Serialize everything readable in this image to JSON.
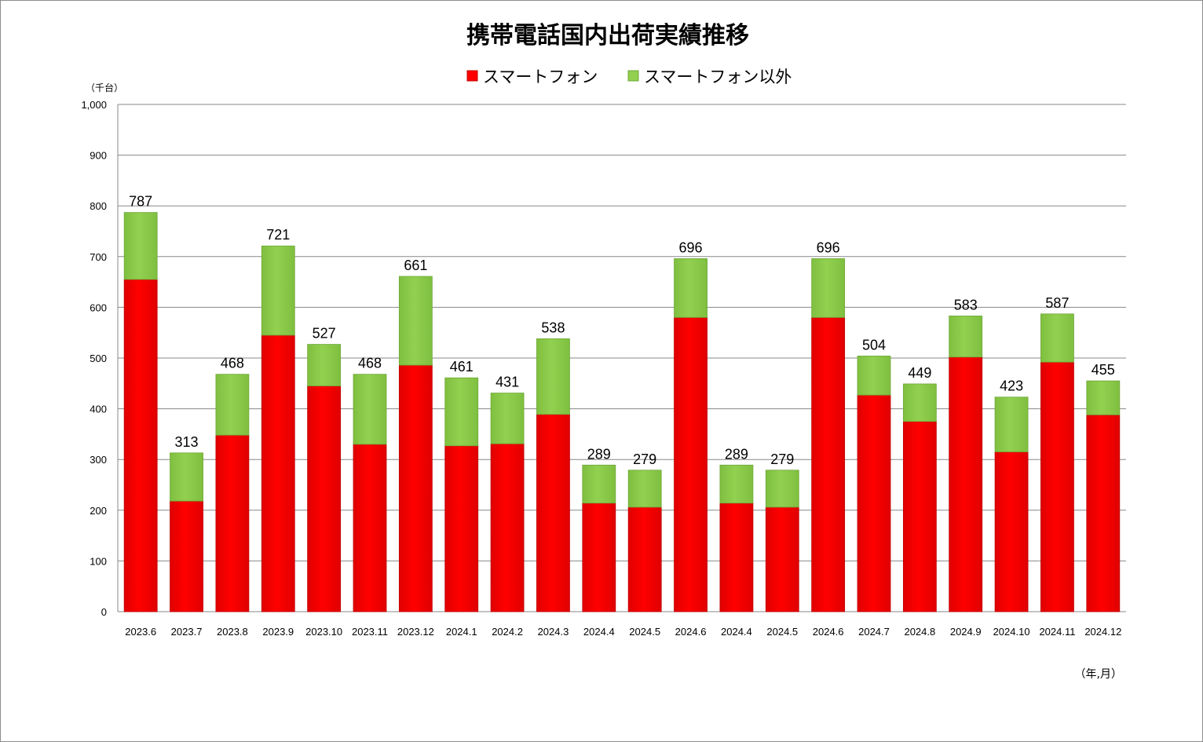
{
  "chart_data": {
    "type": "bar",
    "stacked": true,
    "title": "携帯電話国内出荷実績推移",
    "ylabel": "（千台）",
    "xlabel": "（年,月）",
    "ylim": [
      0,
      1000
    ],
    "yticks": [
      "0",
      "100",
      "200",
      "300",
      "400",
      "500",
      "600",
      "700",
      "800",
      "900",
      "1,000"
    ],
    "grid": true,
    "legend_position": "top",
    "categories": [
      "2023.6",
      "2023.7",
      "2023.8",
      "2023.9",
      "2023.10",
      "2023.11",
      "2023.12",
      "2024.1",
      "2024.2",
      "2024.3",
      "2024.4",
      "2024.5",
      "2024.6",
      "2024.4",
      "2024.5",
      "2024.6",
      "2024.7",
      "2024.8",
      "2024.9",
      "2024.10",
      "2024.11",
      "2024.12"
    ],
    "series": [
      {
        "name": "スマートフォン",
        "color": "#ff0000",
        "values": [
          655,
          218,
          348,
          545,
          445,
          330,
          486,
          327,
          331,
          389,
          214,
          206,
          580,
          214,
          206,
          580,
          427,
          375,
          502,
          315,
          492,
          388
        ]
      },
      {
        "name": "スマートフォン以外",
        "color": "#92d050",
        "values": [
          132,
          95,
          120,
          176,
          82,
          138,
          175,
          134,
          100,
          149,
          75,
          73,
          116,
          75,
          73,
          116,
          77,
          74,
          81,
          108,
          95,
          67
        ]
      }
    ],
    "totals": [
      787,
      313,
      468,
      721,
      527,
      468,
      661,
      461,
      431,
      538,
      289,
      279,
      696,
      289,
      279,
      696,
      504,
      449,
      583,
      423,
      587,
      455
    ]
  }
}
